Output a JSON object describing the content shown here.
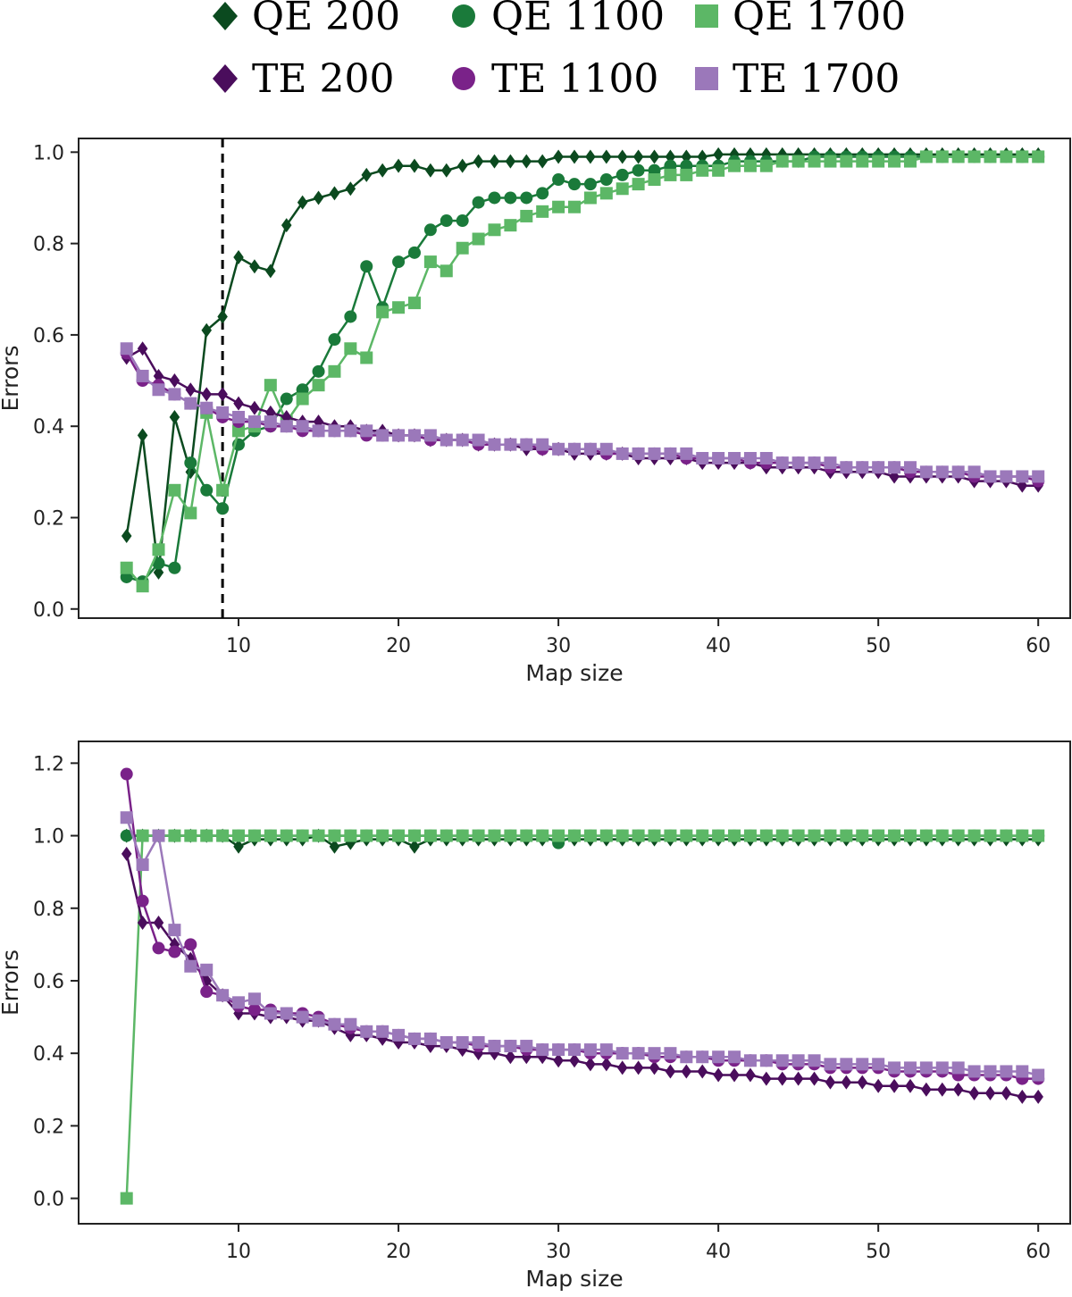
{
  "colors": {
    "qe200": "#0b4a1f",
    "qe1100": "#1a7a3a",
    "qe1700": "#5cb766",
    "te200": "#4a0d5c",
    "te1100": "#7a2289",
    "te1700": "#9b78ba"
  },
  "legend": {
    "items": [
      {
        "key": "qe200",
        "label": "QE 200",
        "marker": "diamond-icon"
      },
      {
        "key": "qe1100",
        "label": "QE 1100",
        "marker": "circle-icon"
      },
      {
        "key": "qe1700",
        "label": "QE 1700",
        "marker": "square-icon"
      },
      {
        "key": "te200",
        "label": "TE 200",
        "marker": "diamond-icon"
      },
      {
        "key": "te1100",
        "label": "TE 1100",
        "marker": "circle-icon"
      },
      {
        "key": "te1700",
        "label": "TE 1700",
        "marker": "square-icon"
      }
    ]
  },
  "chart_data": [
    {
      "type": "line",
      "title": "",
      "xlabel": "Map size",
      "ylabel": "Errors",
      "xlim": [
        0,
        62
      ],
      "ylim": [
        -0.02,
        1.03
      ],
      "xticks": [
        10,
        20,
        30,
        40,
        50,
        60
      ],
      "yticks": [
        0.0,
        0.2,
        0.4,
        0.6,
        0.8,
        1.0
      ],
      "ytick_labels": [
        "0.0",
        "0.2",
        "0.4",
        "0.6",
        "0.8",
        "1.0"
      ],
      "vline": 9,
      "x": [
        3,
        4,
        5,
        6,
        7,
        8,
        9,
        10,
        11,
        12,
        13,
        14,
        15,
        16,
        17,
        18,
        19,
        20,
        21,
        22,
        23,
        24,
        25,
        26,
        27,
        28,
        29,
        30,
        31,
        32,
        33,
        34,
        35,
        36,
        37,
        38,
        39,
        40,
        41,
        42,
        43,
        44,
        45,
        46,
        47,
        48,
        49,
        50,
        51,
        52,
        53,
        54,
        55,
        56,
        57,
        58,
        59,
        60
      ],
      "series": [
        {
          "name": "QE 200",
          "key": "qe200",
          "marker": "diamond",
          "values": [
            0.16,
            0.38,
            0.08,
            0.42,
            0.3,
            0.61,
            0.64,
            0.77,
            0.75,
            0.74,
            0.84,
            0.89,
            0.9,
            0.91,
            0.92,
            0.95,
            0.96,
            0.97,
            0.97,
            0.96,
            0.96,
            0.97,
            0.98,
            0.98,
            0.98,
            0.98,
            0.98,
            0.99,
            0.99,
            0.99,
            0.99,
            0.99,
            0.99,
            0.99,
            0.99,
            0.99,
            0.99,
            0.995,
            0.995,
            0.995,
            0.995,
            0.995,
            0.995,
            0.995,
            0.995,
            0.995,
            0.995,
            0.995,
            0.995,
            0.995,
            0.995,
            0.995,
            0.995,
            0.995,
            0.995,
            0.995,
            0.995,
            0.995
          ]
        },
        {
          "name": "QE 1100",
          "key": "qe1100",
          "marker": "circle",
          "values": [
            0.07,
            0.06,
            0.1,
            0.09,
            0.32,
            0.26,
            0.22,
            0.36,
            0.39,
            0.4,
            0.46,
            0.48,
            0.52,
            0.59,
            0.64,
            0.75,
            0.66,
            0.76,
            0.78,
            0.83,
            0.85,
            0.85,
            0.89,
            0.9,
            0.9,
            0.9,
            0.91,
            0.94,
            0.93,
            0.93,
            0.94,
            0.95,
            0.96,
            0.96,
            0.97,
            0.97,
            0.97,
            0.97,
            0.98,
            0.98,
            0.98,
            0.98,
            0.98,
            0.99,
            0.99,
            0.99,
            0.99,
            0.99,
            0.99,
            0.99,
            0.99,
            0.99,
            0.99,
            0.99,
            0.99,
            0.99,
            0.99,
            0.99
          ]
        },
        {
          "name": "QE 1700",
          "key": "qe1700",
          "marker": "square",
          "values": [
            0.09,
            0.05,
            0.13,
            0.26,
            0.21,
            0.43,
            0.26,
            0.39,
            0.4,
            0.49,
            0.41,
            0.46,
            0.49,
            0.52,
            0.57,
            0.55,
            0.65,
            0.66,
            0.67,
            0.76,
            0.74,
            0.79,
            0.81,
            0.83,
            0.84,
            0.86,
            0.87,
            0.88,
            0.88,
            0.9,
            0.91,
            0.92,
            0.93,
            0.94,
            0.95,
            0.95,
            0.96,
            0.96,
            0.97,
            0.97,
            0.97,
            0.98,
            0.98,
            0.98,
            0.98,
            0.98,
            0.98,
            0.98,
            0.98,
            0.98,
            0.99,
            0.99,
            0.99,
            0.99,
            0.99,
            0.99,
            0.99,
            0.99
          ]
        },
        {
          "name": "TE 200",
          "key": "te200",
          "marker": "diamond",
          "values": [
            0.55,
            0.57,
            0.51,
            0.5,
            0.48,
            0.47,
            0.47,
            0.45,
            0.44,
            0.43,
            0.42,
            0.41,
            0.41,
            0.4,
            0.4,
            0.39,
            0.39,
            0.38,
            0.38,
            0.37,
            0.37,
            0.37,
            0.36,
            0.36,
            0.36,
            0.35,
            0.35,
            0.35,
            0.34,
            0.34,
            0.34,
            0.34,
            0.33,
            0.33,
            0.33,
            0.33,
            0.32,
            0.32,
            0.32,
            0.32,
            0.31,
            0.31,
            0.31,
            0.31,
            0.3,
            0.3,
            0.3,
            0.3,
            0.29,
            0.29,
            0.29,
            0.29,
            0.29,
            0.28,
            0.28,
            0.28,
            0.27,
            0.27
          ]
        },
        {
          "name": "TE 1100",
          "key": "te1100",
          "marker": "circle",
          "values": [
            0.56,
            0.5,
            0.49,
            0.47,
            0.45,
            0.44,
            0.42,
            0.41,
            0.41,
            0.4,
            0.4,
            0.39,
            0.39,
            0.39,
            0.39,
            0.38,
            0.38,
            0.38,
            0.38,
            0.37,
            0.37,
            0.37,
            0.36,
            0.36,
            0.36,
            0.36,
            0.35,
            0.35,
            0.35,
            0.35,
            0.34,
            0.34,
            0.34,
            0.34,
            0.34,
            0.33,
            0.33,
            0.33,
            0.33,
            0.32,
            0.32,
            0.32,
            0.32,
            0.32,
            0.31,
            0.31,
            0.31,
            0.31,
            0.31,
            0.3,
            0.3,
            0.3,
            0.3,
            0.29,
            0.29,
            0.29,
            0.29,
            0.28
          ]
        },
        {
          "name": "TE 1700",
          "key": "te1700",
          "marker": "square",
          "values": [
            0.57,
            0.51,
            0.48,
            0.47,
            0.45,
            0.44,
            0.43,
            0.42,
            0.41,
            0.41,
            0.4,
            0.4,
            0.39,
            0.39,
            0.39,
            0.39,
            0.38,
            0.38,
            0.38,
            0.38,
            0.37,
            0.37,
            0.37,
            0.36,
            0.36,
            0.36,
            0.36,
            0.35,
            0.35,
            0.35,
            0.35,
            0.34,
            0.34,
            0.34,
            0.34,
            0.34,
            0.33,
            0.33,
            0.33,
            0.33,
            0.33,
            0.32,
            0.32,
            0.32,
            0.32,
            0.31,
            0.31,
            0.31,
            0.31,
            0.31,
            0.3,
            0.3,
            0.3,
            0.3,
            0.29,
            0.29,
            0.29,
            0.29
          ]
        }
      ]
    },
    {
      "type": "line",
      "title": "",
      "xlabel": "Map size",
      "ylabel": "Errors",
      "xlim": [
        0,
        62
      ],
      "ylim": [
        -0.07,
        1.26
      ],
      "xticks": [
        10,
        20,
        30,
        40,
        50,
        60
      ],
      "yticks": [
        0.0,
        0.2,
        0.4,
        0.6,
        0.8,
        1.0,
        1.2
      ],
      "ytick_labels": [
        "0.0",
        "0.2",
        "0.4",
        "0.6",
        "0.8",
        "1.0",
        "1.2"
      ],
      "x": [
        3,
        4,
        5,
        6,
        7,
        8,
        9,
        10,
        11,
        12,
        13,
        14,
        15,
        16,
        17,
        18,
        19,
        20,
        21,
        22,
        23,
        24,
        25,
        26,
        27,
        28,
        29,
        30,
        31,
        32,
        33,
        34,
        35,
        36,
        37,
        38,
        39,
        40,
        41,
        42,
        43,
        44,
        45,
        46,
        47,
        48,
        49,
        50,
        51,
        52,
        53,
        54,
        55,
        56,
        57,
        58,
        59,
        60
      ],
      "series": [
        {
          "name": "QE 200",
          "key": "qe200",
          "marker": "diamond",
          "values": [
            1.0,
            1.0,
            1.0,
            1.0,
            1.0,
            1.0,
            1.0,
            0.97,
            0.99,
            0.99,
            0.99,
            0.99,
            1.0,
            0.97,
            0.98,
            0.99,
            0.99,
            0.99,
            0.97,
            0.99,
            0.99,
            0.99,
            0.99,
            0.99,
            0.99,
            0.99,
            0.99,
            0.99,
            0.99,
            0.99,
            0.99,
            0.99,
            0.99,
            0.99,
            0.99,
            0.99,
            0.99,
            0.99,
            0.99,
            0.99,
            0.99,
            0.99,
            0.99,
            0.99,
            0.99,
            0.99,
            0.99,
            0.99,
            0.99,
            0.99,
            0.99,
            0.99,
            0.99,
            0.99,
            0.99,
            0.99,
            0.99,
            0.99
          ]
        },
        {
          "name": "QE 1100",
          "key": "qe1100",
          "marker": "circle",
          "values": [
            1.0,
            1.0,
            1.0,
            1.0,
            1.0,
            1.0,
            1.0,
            1.0,
            1.0,
            1.0,
            1.0,
            1.0,
            1.0,
            1.0,
            1.0,
            1.0,
            1.0,
            1.0,
            1.0,
            1.0,
            1.0,
            1.0,
            1.0,
            1.0,
            1.0,
            1.0,
            1.0,
            0.98,
            1.0,
            1.0,
            1.0,
            1.0,
            1.0,
            1.0,
            1.0,
            1.0,
            1.0,
            1.0,
            1.0,
            1.0,
            1.0,
            1.0,
            1.0,
            1.0,
            1.0,
            1.0,
            1.0,
            1.0,
            1.0,
            1.0,
            1.0,
            1.0,
            1.0,
            1.0,
            1.0,
            1.0,
            1.0,
            1.0
          ]
        },
        {
          "name": "QE 1700",
          "key": "qe1700",
          "marker": "square",
          "values": [
            0.0,
            1.0,
            1.0,
            1.0,
            1.0,
            1.0,
            1.0,
            1.0,
            1.0,
            1.0,
            1.0,
            1.0,
            1.0,
            1.0,
            1.0,
            1.0,
            1.0,
            1.0,
            1.0,
            1.0,
            1.0,
            1.0,
            1.0,
            1.0,
            1.0,
            1.0,
            1.0,
            1.0,
            1.0,
            1.0,
            1.0,
            1.0,
            1.0,
            1.0,
            1.0,
            1.0,
            1.0,
            1.0,
            1.0,
            1.0,
            1.0,
            1.0,
            1.0,
            1.0,
            1.0,
            1.0,
            1.0,
            1.0,
            1.0,
            1.0,
            1.0,
            1.0,
            1.0,
            1.0,
            1.0,
            1.0,
            1.0,
            1.0
          ]
        },
        {
          "name": "TE 200",
          "key": "te200",
          "marker": "diamond",
          "values": [
            0.95,
            0.76,
            0.76,
            0.7,
            0.66,
            0.6,
            0.56,
            0.51,
            0.51,
            0.5,
            0.5,
            0.49,
            0.49,
            0.47,
            0.45,
            0.45,
            0.44,
            0.43,
            0.43,
            0.42,
            0.42,
            0.41,
            0.4,
            0.4,
            0.39,
            0.39,
            0.39,
            0.38,
            0.38,
            0.37,
            0.37,
            0.36,
            0.36,
            0.36,
            0.35,
            0.35,
            0.35,
            0.34,
            0.34,
            0.34,
            0.33,
            0.33,
            0.33,
            0.33,
            0.32,
            0.32,
            0.32,
            0.31,
            0.31,
            0.31,
            0.3,
            0.3,
            0.3,
            0.29,
            0.29,
            0.29,
            0.28,
            0.28
          ]
        },
        {
          "name": "TE 1100",
          "key": "te1100",
          "marker": "circle",
          "values": [
            1.17,
            0.82,
            0.69,
            0.68,
            0.7,
            0.57,
            0.56,
            0.53,
            0.52,
            0.52,
            0.51,
            0.51,
            0.5,
            0.48,
            0.47,
            0.46,
            0.46,
            0.45,
            0.44,
            0.44,
            0.43,
            0.43,
            0.42,
            0.42,
            0.42,
            0.41,
            0.41,
            0.41,
            0.41,
            0.4,
            0.4,
            0.4,
            0.4,
            0.39,
            0.39,
            0.39,
            0.39,
            0.38,
            0.38,
            0.38,
            0.38,
            0.37,
            0.37,
            0.37,
            0.36,
            0.36,
            0.36,
            0.36,
            0.35,
            0.35,
            0.35,
            0.35,
            0.34,
            0.34,
            0.34,
            0.34,
            0.33,
            0.33
          ]
        },
        {
          "name": "TE 1700",
          "key": "te1700",
          "marker": "square",
          "values": [
            1.05,
            0.92,
            1.0,
            0.74,
            0.64,
            0.63,
            0.56,
            0.54,
            0.55,
            0.51,
            0.51,
            0.5,
            0.49,
            0.48,
            0.48,
            0.46,
            0.46,
            0.45,
            0.44,
            0.44,
            0.43,
            0.43,
            0.43,
            0.42,
            0.42,
            0.42,
            0.41,
            0.41,
            0.41,
            0.41,
            0.41,
            0.4,
            0.4,
            0.4,
            0.4,
            0.39,
            0.39,
            0.39,
            0.39,
            0.38,
            0.38,
            0.38,
            0.38,
            0.38,
            0.37,
            0.37,
            0.37,
            0.37,
            0.36,
            0.36,
            0.36,
            0.36,
            0.36,
            0.35,
            0.35,
            0.35,
            0.35,
            0.34
          ]
        }
      ]
    }
  ]
}
